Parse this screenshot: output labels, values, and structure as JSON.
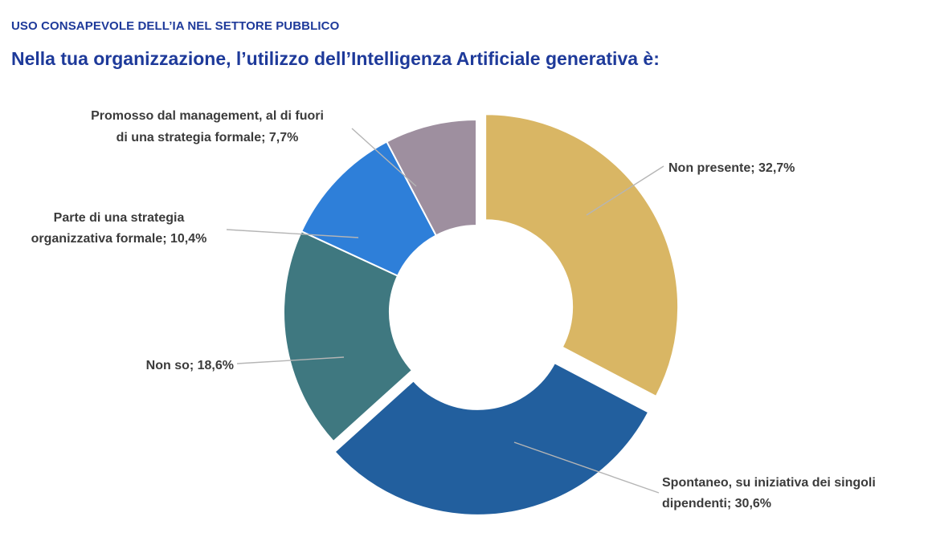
{
  "header": {
    "kicker": "USO CONSAPEVOLE DELL’IA NEL SETTORE PUBBLICO",
    "title": "Nella tua organizzazione, l’utilizzo dell’Intelligenza Artificiale generativa è:"
  },
  "chart_data": {
    "type": "pie",
    "variant": "donut",
    "exploded": [
      "Non presente",
      "Spontaneo, su iniziativa dei singoli dipendenti"
    ],
    "series": [
      {
        "category": "Non presente",
        "value": 32.7,
        "color": "#d9b664",
        "label_lines": [
          "Non presente; 32,7%"
        ]
      },
      {
        "category": "Spontaneo, su iniziativa dei singoli dipendenti",
        "value": 30.6,
        "color": "#225f9e",
        "label_lines": [
          "Spontaneo, su iniziativa dei singoli",
          "dipendenti; 30,6%"
        ]
      },
      {
        "category": "Non so",
        "value": 18.6,
        "color": "#3f7880",
        "label_lines": [
          "Non so; 18,6%"
        ]
      },
      {
        "category": "Parte di una strategia organizzativa formale",
        "value": 10.4,
        "color": "#2e7fd9",
        "label_lines": [
          "Parte di una strategia",
          "organizzativa formale; 10,4%"
        ]
      },
      {
        "category": "Promosso dal management, al di fuori di una strategia formale",
        "value": 7.7,
        "color": "#9e8f9f",
        "label_lines": [
          "Promosso dal management, al di fuori",
          "di una strategia formale; 7,7%"
        ]
      }
    ]
  }
}
